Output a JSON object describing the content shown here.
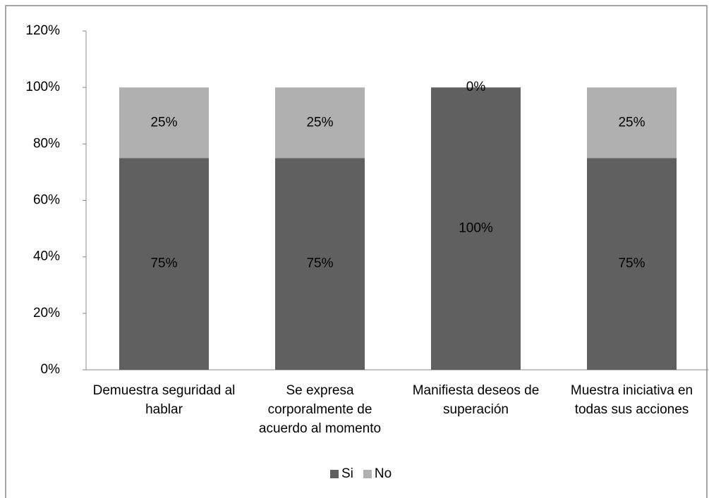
{
  "chart_data": {
    "type": "stacked_bar",
    "categories": [
      "Demuestra seguridad al hablar",
      "Se expresa corporalmente de acuerdo al momento",
      "Manifiesta deseos de superación",
      "Muestra iniciativa en todas sus acciones"
    ],
    "series": [
      {
        "name": "Si",
        "color": "#606060",
        "values": [
          75,
          75,
          100,
          75
        ],
        "value_labels": [
          "75%",
          "75%",
          "100%",
          "75%"
        ]
      },
      {
        "name": "No",
        "color": "#b0b0b0",
        "values": [
          25,
          25,
          0,
          25
        ],
        "value_labels": [
          "25%",
          "25%",
          "0%",
          "25%"
        ]
      }
    ],
    "ylim": [
      0,
      120
    ],
    "yticks": [
      {
        "value": 0,
        "label": "0%"
      },
      {
        "value": 20,
        "label": "20%"
      },
      {
        "value": 40,
        "label": "40%"
      },
      {
        "value": 60,
        "label": "60%"
      },
      {
        "value": 80,
        "label": "80%"
      },
      {
        "value": 100,
        "label": "100%"
      },
      {
        "value": 120,
        "label": "120%"
      }
    ],
    "grid": false,
    "legend": "bottom"
  }
}
